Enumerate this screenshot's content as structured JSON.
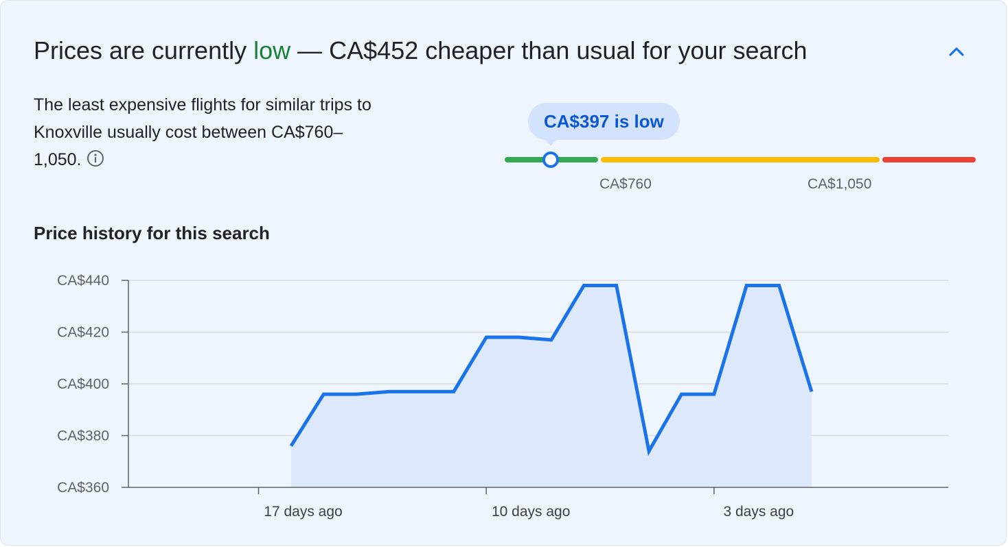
{
  "header": {
    "title_prefix": "Prices are currently ",
    "title_status": "low",
    "title_suffix": " — CA$452 cheaper than usual for your search",
    "collapse_icon": "chevron-up-icon"
  },
  "summary": {
    "description": "The least expensive flights for similar trips to Knoxville usually cost between CA$760–1,050.",
    "info_icon": "info-icon"
  },
  "price_range": {
    "tooltip": "CA$397 is low",
    "current_price": 397,
    "low_label": "CA$760",
    "high_label": "CA$1,050",
    "colors": {
      "low": "#34a853",
      "typical": "#fbbc04",
      "high": "#ea4335"
    }
  },
  "history": {
    "title": "Price history for this search"
  },
  "colors": {
    "accent": "#1a73e8",
    "low_text": "#188038",
    "area_fill": "#dde9fb"
  },
  "chart_data": {
    "type": "area",
    "x_unit": "days ago",
    "xlim": [
      21,
      -4.2
    ],
    "ylim": [
      360,
      440
    ],
    "yticks": [
      440,
      420,
      400,
      380,
      360
    ],
    "ytick_labels": [
      "CA$440",
      "CA$420",
      "CA$400",
      "CA$380",
      "CA$360"
    ],
    "xticks": [
      17,
      10,
      3
    ],
    "xtick_labels": [
      "17 days ago",
      "10 days ago",
      "3 days ago"
    ],
    "grid": true,
    "series": [
      {
        "x": [
          16,
          15,
          14,
          13,
          12,
          11,
          10,
          9,
          8,
          7,
          6,
          5,
          4,
          3,
          2,
          1,
          0
        ],
        "values": [
          376,
          396,
          396,
          397,
          397,
          397,
          418,
          418,
          417,
          438,
          438,
          374,
          396,
          396,
          438,
          438,
          397
        ]
      }
    ]
  }
}
